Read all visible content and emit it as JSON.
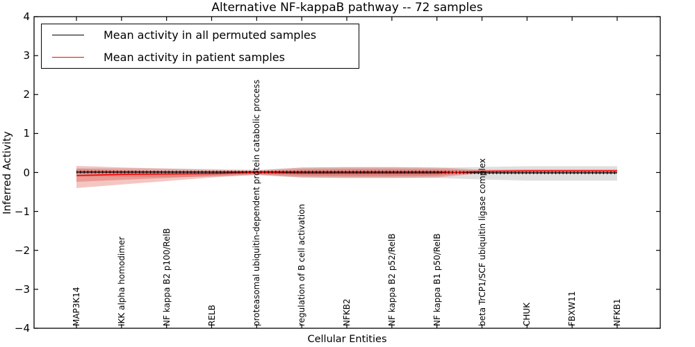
{
  "title": "Alternative NF-kappaB pathway -- 72 samples",
  "legend": {
    "items": [
      {
        "label": "Mean activity in all permuted samples",
        "color": "#000000"
      },
      {
        "label": "Mean activity in patient samples",
        "color": "#ff0000"
      }
    ],
    "position": "upper left"
  },
  "chart_data": {
    "type": "line",
    "title": "Alternative NF-kappaB pathway -- 72 samples",
    "xlabel": "Cellular Entities",
    "ylabel": "Inferred Activity",
    "ylim": [
      -4,
      4
    ],
    "yticks": [
      4,
      3,
      2,
      1,
      0,
      -1,
      -2,
      -3,
      -4
    ],
    "grid": false,
    "legend_position": "upper left",
    "categories": [
      "MAP3K14",
      "IKK alpha homodimer",
      "NF kappa B2 p100/RelB",
      "RELB",
      "proteasomal ubiquitin-dependent protein catabolic process",
      "regulation of B cell activation",
      "NFKB2",
      "NF kappa B2 p52/RelB",
      "NF kappa B1 p50/RelB",
      "beta TrCP1/SCF ubiquitin ligase complex",
      "CHUK",
      "FBXW11",
      "NFKB1"
    ],
    "series": [
      {
        "name": "Mean activity in all permuted samples",
        "color": "#000000",
        "marker": "tick-dots",
        "values": [
          0.01,
          0.01,
          0.01,
          0.01,
          0.01,
          0.01,
          0.01,
          0.01,
          0.01,
          -0.01,
          -0.01,
          -0.01,
          -0.01
        ]
      },
      {
        "name": "Mean activity in patient samples",
        "color": "#ff0000",
        "marker": "none",
        "values": [
          -0.08,
          -0.05,
          -0.04,
          -0.03,
          0.0,
          -0.02,
          -0.02,
          -0.02,
          -0.02,
          0.03,
          0.04,
          0.04,
          0.04
        ]
      }
    ],
    "bands": [
      {
        "name": "permuted-std-band",
        "color": "#9a9aa0",
        "opacity": 0.32,
        "upper": [
          0.11,
          0.11,
          0.1,
          0.09,
          0.07,
          0.12,
          0.13,
          0.13,
          0.12,
          0.14,
          0.16,
          0.16,
          0.16
        ],
        "lower": [
          -0.1,
          -0.11,
          -0.12,
          -0.11,
          -0.07,
          -0.13,
          -0.14,
          -0.14,
          -0.14,
          -0.18,
          -0.21,
          -0.21,
          -0.21
        ]
      },
      {
        "name": "patient-std-outer-band",
        "color": "#d83428",
        "opacity": 0.28,
        "upper": [
          0.17,
          0.13,
          0.1,
          0.07,
          0.05,
          0.13,
          0.14,
          0.14,
          0.13,
          0.07,
          0.08,
          0.08,
          0.08
        ],
        "lower": [
          -0.4,
          -0.31,
          -0.22,
          -0.13,
          -0.06,
          -0.13,
          -0.14,
          -0.14,
          -0.13,
          -0.02,
          -0.01,
          -0.01,
          -0.01
        ]
      },
      {
        "name": "patient-std-inner-band",
        "color": "#d83428",
        "opacity": 0.3,
        "upper": [
          0.09,
          0.06,
          0.04,
          0.035,
          0.035,
          0.08,
          0.09,
          0.09,
          0.08,
          0.05,
          0.06,
          0.06,
          0.06
        ],
        "lower": [
          -0.24,
          -0.19,
          -0.14,
          -0.09,
          -0.045,
          -0.09,
          -0.1,
          -0.1,
          -0.09,
          0.0,
          0.01,
          0.01,
          0.01
        ]
      }
    ]
  }
}
